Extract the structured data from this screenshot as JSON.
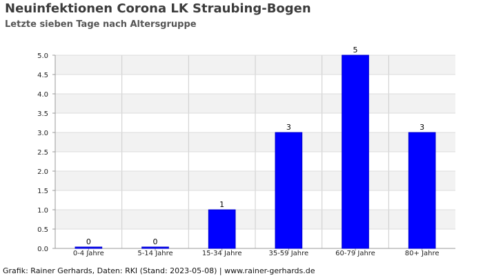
{
  "chart_data": {
    "type": "bar",
    "title": "Neuinfektionen Corona LK Straubing-Bogen",
    "subtitle": "Letzte sieben Tage nach Altersgruppe",
    "categories": [
      "0-4 Jahre",
      "5-14 Jahre",
      "15-34 Jahre",
      "35-59 Jahre",
      "60-79 Jahre",
      "80+ Jahre"
    ],
    "values": [
      0,
      0,
      1,
      3,
      5,
      3
    ],
    "data_labels": [
      "0",
      "0",
      "1",
      "3",
      "5",
      "3"
    ],
    "ylim": [
      0,
      5
    ],
    "yticks": [
      "0.0",
      "0.5",
      "1.0",
      "1.5",
      "2.0",
      "2.5",
      "3.0",
      "3.5",
      "4.0",
      "4.5",
      "5.0"
    ],
    "bar_color": "#0000ff",
    "grid": true,
    "legend": "none"
  },
  "footer": "Grafik: Rainer Gerhards, Daten: RKI (Stand: 2023-05-08) | www.rainer-gerhards.de"
}
